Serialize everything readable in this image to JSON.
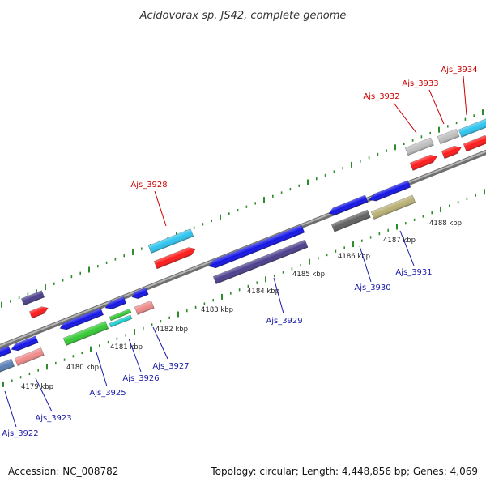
{
  "title": "Acidovorax sp. JS42, complete genome",
  "accession": "Accession: NC_008782",
  "topology": "Topology: circular; Length: 4,448,856 bp; Genes: 4,069",
  "colors": {
    "backbone": "#8c8c8c",
    "tick": "#2e8b2e",
    "label_forward": "#cc0000",
    "label_reverse": "#1a1aa6"
  },
  "scale_labels": [
    "4179 kbp",
    "4180 kbp",
    "4181 kbp",
    "4182 kbp",
    "4183 kbp",
    "4184 kbp",
    "4185 kbp",
    "4186 kbp",
    "4187 kbp",
    "4188 kbp"
  ],
  "gene_labels_forward": [
    "Ajs_3928",
    "Ajs_3932",
    "Ajs_3933",
    "Ajs_3934"
  ],
  "gene_labels_reverse": [
    "Ajs_3922",
    "Ajs_3923",
    "Ajs_3925",
    "Ajs_3926",
    "Ajs_3927",
    "Ajs_3929",
    "Ajs_3930",
    "Ajs_3931"
  ]
}
